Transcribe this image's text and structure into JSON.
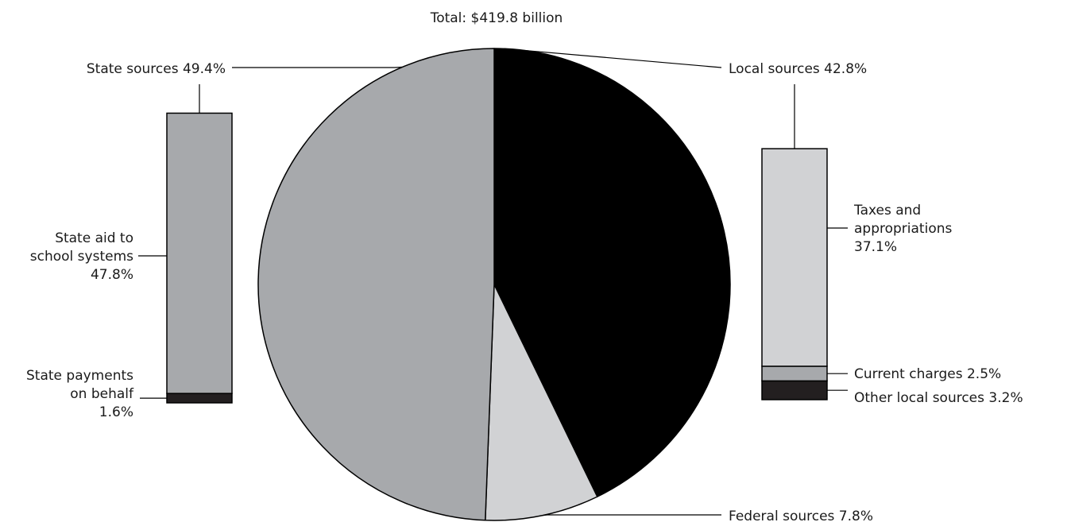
{
  "chart_data": {
    "type": "pie",
    "title": "Total:  $419.8 billion",
    "slices": [
      {
        "name": "Local sources",
        "value": 42.8,
        "label": "Local sources 42.8%",
        "color": "#000000"
      },
      {
        "name": "Federal sources",
        "value": 7.8,
        "label": "Federal sources 7.8%",
        "color": "#d1d2d4"
      },
      {
        "name": "State sources",
        "value": 49.4,
        "label": "State sources 49.4%",
        "color": "#a7a9ac"
      }
    ],
    "breakdowns": {
      "state": {
        "parent": "State sources",
        "segments": [
          {
            "name": "State aid to school systems",
            "value": 47.8,
            "label_lines": [
              "State aid to",
              "school systems",
              "47.8%"
            ],
            "color": "#a7a9ac"
          },
          {
            "name": "State payments on behalf",
            "value": 1.6,
            "label_lines": [
              "State payments",
              "on behalf",
              "1.6%"
            ],
            "color": "#231f20"
          }
        ]
      },
      "local": {
        "parent": "Local sources",
        "segments": [
          {
            "name": "Taxes and appropriations",
            "value": 37.1,
            "label_lines": [
              "Taxes and",
              "appropriations",
              "37.1%"
            ],
            "color": "#d1d2d4"
          },
          {
            "name": "Current charges",
            "value": 2.5,
            "label_lines": [
              "Current charges 2.5%"
            ],
            "color": "#a7a9ac"
          },
          {
            "name": "Other local sources",
            "value": 3.2,
            "label_lines": [
              "Other local sources 3.2%"
            ],
            "color": "#231f20"
          }
        ]
      }
    }
  }
}
